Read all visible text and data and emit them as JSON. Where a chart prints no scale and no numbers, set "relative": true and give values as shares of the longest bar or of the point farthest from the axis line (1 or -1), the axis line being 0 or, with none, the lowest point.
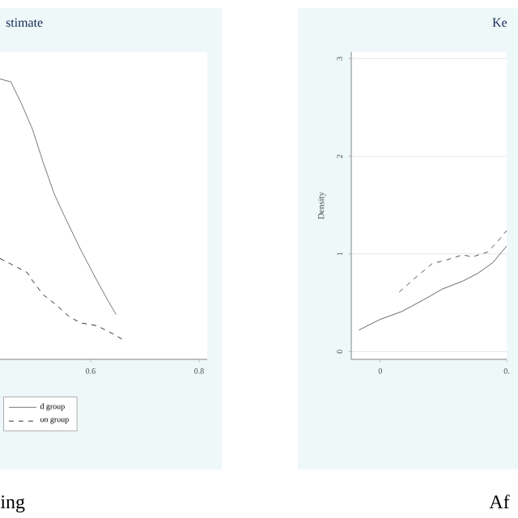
{
  "chart_data": [
    {
      "type": "line",
      "title": "stimate",
      "relative": true,
      "xlim": [
        0.433,
        0.815
      ],
      "xticks": [
        0.6,
        0.8
      ],
      "tick_labels": "x",
      "legend": "bottom",
      "annotations": [
        "ing"
      ],
      "series": [
        {
          "name": "d group",
          "color": "#777777",
          "line_style": "solid",
          "x": [
            0.433,
            0.453,
            0.473,
            0.493,
            0.513,
            0.533,
            0.552,
            0.582,
            0.612,
            0.632,
            0.647
          ],
          "values": [
            1,
            0.99,
            0.91,
            0.82,
            0.7,
            0.59,
            0.51,
            0.39,
            0.28,
            0.21,
            0.16
          ]
        },
        {
          "name": "on group",
          "color": "#333333",
          "line_style": "dashed",
          "x": [
            0.433,
            0.453,
            0.483,
            0.493,
            0.513,
            0.533,
            0.562,
            0.582,
            0.612,
            0.642,
            0.66
          ],
          "values": [
            0.36,
            0.34,
            0.31,
            0.28,
            0.23,
            0.2,
            0.15,
            0.13,
            0.12,
            0.09,
            0.07
          ]
        }
      ]
    },
    {
      "type": "line",
      "title": "Ke",
      "ylabel": "Density",
      "xlim": [
        -0.046,
        0.2
      ],
      "ylim": [
        -0.08,
        3.07
      ],
      "xticks": [
        0,
        {
          "value": 0.2,
          "label": "0."
        }
      ],
      "yticks": [
        0,
        1,
        2,
        3
      ],
      "grid": "y",
      "annotations": [
        "Af"
      ],
      "series": [
        {
          "color": "#666666",
          "line_style": "solid",
          "x": [
            -0.034,
            0.0,
            0.034,
            0.074,
            0.098,
            0.13,
            0.154,
            0.178,
            0.2
          ],
          "values": [
            0.22,
            0.33,
            0.41,
            0.55,
            0.64,
            0.72,
            0.8,
            0.91,
            1.08
          ]
        },
        {
          "color": "#555555",
          "line_style": "dashed",
          "x": [
            0.03,
            0.058,
            0.082,
            0.106,
            0.13,
            0.146,
            0.17,
            0.186,
            0.2
          ],
          "values": [
            0.61,
            0.77,
            0.9,
            0.94,
            0.99,
            0.97,
            1.02,
            1.13,
            1.24
          ]
        }
      ]
    }
  ]
}
